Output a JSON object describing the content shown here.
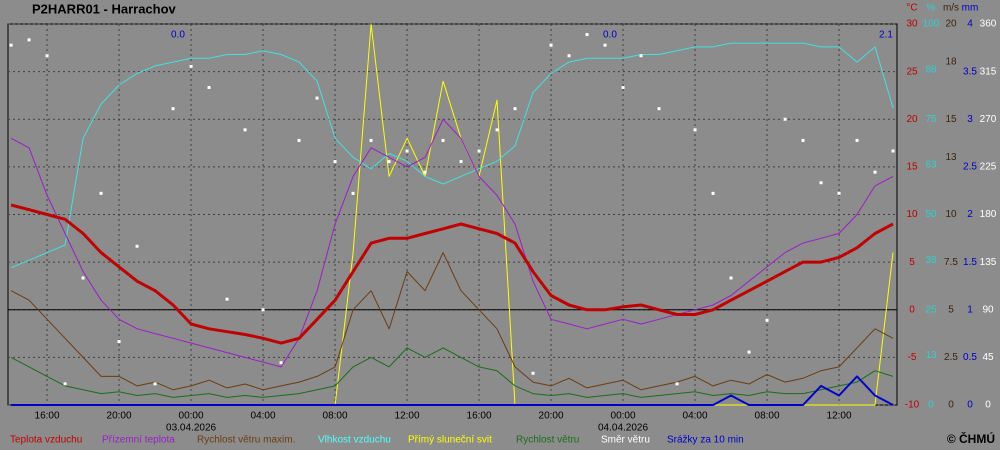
{
  "chart_data": {
    "type": "line",
    "title": "P2HARR01 - Harrachov",
    "copyright": "© ČHMÚ",
    "xlim": [
      -10.17,
      39.22
    ],
    "xticks": [
      {
        "value": -8,
        "label": "16:00"
      },
      {
        "value": -4,
        "label": "20:00"
      },
      {
        "value": 0,
        "label": "00:00"
      },
      {
        "value": 4,
        "label": "04:00"
      },
      {
        "value": 8,
        "label": "08:00"
      },
      {
        "value": 12,
        "label": "12:00"
      },
      {
        "value": 16,
        "label": "16:00"
      },
      {
        "value": 20,
        "label": "20:00"
      },
      {
        "value": 24,
        "label": "00:00"
      },
      {
        "value": 28,
        "label": "04:00"
      },
      {
        "value": 32,
        "label": "08:00"
      },
      {
        "value": 36,
        "label": "12:00"
      }
    ],
    "date_labels": [
      {
        "value": 0,
        "label": "03.04.2026"
      },
      {
        "value": 24,
        "label": "04.04.2026"
      }
    ],
    "daily_precipitation": [
      {
        "value": 0,
        "label": "0.0"
      },
      {
        "value": 0,
        "label": "0.0"
      },
      2.1
    ],
    "grid": true,
    "zero_line": 0,
    "axes": [
      {
        "name": "°C",
        "color": "#c00000",
        "lim": [
          -10,
          30
        ],
        "ticks": [
          -10,
          -5,
          0,
          5,
          10,
          15,
          20,
          25,
          30
        ]
      },
      {
        "name": "%",
        "color": "#30d0d0",
        "lim": [
          0,
          100
        ],
        "ticks": [
          0,
          13,
          25,
          38,
          50,
          63,
          75,
          88,
          100
        ]
      },
      {
        "name": "m/s",
        "color": "#3a2410",
        "lim": [
          0,
          20
        ],
        "ticks": [
          0,
          2.5,
          5,
          7.5,
          10,
          13,
          15,
          18,
          20
        ]
      },
      {
        "name": "mm",
        "color": "#0000cc",
        "lim": [
          0,
          4
        ],
        "ticks": [
          0,
          0.5,
          1,
          1.5,
          2,
          2.5,
          3,
          3.5,
          4
        ]
      },
      {
        "color": "#ffffff",
        "lim": [
          0,
          360
        ],
        "ticks": [
          0,
          45,
          90,
          135,
          180,
          225,
          270,
          315,
          360
        ]
      }
    ],
    "x": [
      -10,
      -9,
      -8,
      -7,
      -6,
      -5,
      -4,
      -3,
      -2,
      -1,
      0,
      1,
      2,
      3,
      4,
      5,
      6,
      7,
      8,
      9,
      10,
      11,
      12,
      13,
      14,
      15,
      16,
      17,
      18,
      19,
      20,
      21,
      22,
      23,
      24,
      25,
      26,
      27,
      28,
      29,
      30,
      31,
      32,
      33,
      34,
      35,
      36,
      37,
      38,
      39
    ],
    "series": [
      {
        "name": "Teplota vzduchu",
        "color": "#c00000",
        "axis": 0,
        "style": "line",
        "width": 3,
        "values": [
          11,
          10.5,
          10,
          9.5,
          8,
          6,
          4.5,
          3,
          2,
          0.5,
          -1.5,
          -2,
          -2.3,
          -2.6,
          -3,
          -3.5,
          -3,
          -1,
          1,
          4,
          7,
          7.5,
          7.5,
          8,
          8.5,
          9,
          8.5,
          8,
          7,
          4,
          1.5,
          0.5,
          0,
          0,
          0.3,
          0.5,
          0,
          -0.5,
          -0.5,
          0,
          1,
          2,
          3,
          4,
          5,
          5,
          5.5,
          6.5,
          8,
          9
        ]
      },
      {
        "name": "Přízemní teplota",
        "color": "#9a1fc8",
        "axis": 0,
        "style": "line",
        "width": 1,
        "values": [
          18,
          17,
          12,
          8,
          4,
          1,
          -1,
          -2,
          -2.5,
          -3,
          -3.5,
          -4,
          -4.5,
          -5,
          -5.5,
          -6,
          -3,
          2,
          9,
          14,
          17,
          16,
          15,
          16,
          20,
          18,
          14,
          12,
          9,
          3,
          -1,
          -1.5,
          -2,
          -1.5,
          -1,
          -1.5,
          -1,
          -0.5,
          0,
          0.5,
          1.5,
          3,
          4.5,
          6,
          7,
          7.5,
          8,
          10,
          13,
          14
        ]
      },
      {
        "name": "Rychlost větru maxim.",
        "color": "#6b3d12",
        "axis": 2,
        "style": "line",
        "width": 1,
        "values": [
          6,
          5.5,
          4.5,
          3.5,
          2.5,
          1.5,
          1.5,
          1,
          1.2,
          0.8,
          1,
          1.3,
          0.9,
          1.1,
          0.8,
          1,
          1.2,
          1.5,
          2,
          5,
          6,
          4,
          7,
          6,
          8,
          6,
          5,
          4,
          2,
          1.2,
          1,
          1.4,
          0.9,
          1.1,
          1.3,
          0.8,
          1,
          1.2,
          1.5,
          1,
          1.3,
          1.1,
          1.6,
          1.2,
          1.4,
          1.8,
          2,
          3,
          4,
          3.5
        ]
      },
      {
        "name": "Vlhkost vzduchu",
        "color": "#44e0e0",
        "axis": 1,
        "style": "line",
        "width": 1,
        "values": [
          36,
          38,
          40,
          42,
          70,
          79,
          84,
          87,
          89,
          90,
          91,
          91,
          92,
          92,
          93,
          92,
          90,
          85,
          70,
          65,
          62,
          66,
          64,
          60,
          58,
          60,
          62,
          64,
          68,
          82,
          87,
          90,
          91,
          91,
          91,
          92,
          92,
          93,
          94,
          94,
          95,
          95,
          95,
          95,
          95,
          94,
          94,
          90,
          94,
          78
        ]
      },
      {
        "name": "Přímý sluneční svit",
        "color": "#ffff00",
        "axis": 1,
        "style": "line",
        "width": 1,
        "values": [
          0,
          0,
          0,
          0,
          0,
          0,
          0,
          0,
          0,
          0,
          0,
          0,
          0,
          0,
          0,
          0,
          0,
          0,
          0,
          40,
          100,
          60,
          70,
          60,
          85,
          70,
          60,
          80,
          0,
          0,
          0,
          0,
          0,
          0,
          0,
          0,
          0,
          0,
          0,
          0,
          0,
          0,
          0,
          0,
          0,
          0,
          0,
          0,
          0,
          40
        ]
      },
      {
        "name": "Rychlost větru",
        "color": "#1a6e1a",
        "axis": 2,
        "style": "line",
        "width": 1,
        "values": [
          2.5,
          2,
          1.5,
          1,
          0.8,
          0.6,
          0.7,
          0.5,
          0.6,
          0.4,
          0.5,
          0.6,
          0.4,
          0.5,
          0.4,
          0.5,
          0.6,
          0.8,
          1,
          2,
          2.5,
          2,
          3,
          2.5,
          3,
          2.5,
          2,
          1.8,
          1,
          0.6,
          0.5,
          0.6,
          0.4,
          0.5,
          0.6,
          0.4,
          0.5,
          0.6,
          0.7,
          0.5,
          0.6,
          0.5,
          0.7,
          0.6,
          0.6,
          0.8,
          1,
          1.2,
          1.8,
          1.5
        ]
      },
      {
        "name": "Směr větru",
        "color": "#ffffff",
        "axis": 4,
        "style": "dots",
        "width": 1,
        "values": [
          340,
          345,
          330,
          20,
          120,
          200,
          60,
          150,
          20,
          280,
          320,
          300,
          100,
          260,
          90,
          40,
          250,
          290,
          230,
          200,
          250,
          230,
          240,
          220,
          250,
          230,
          240,
          260,
          280,
          30,
          340,
          330,
          350,
          340,
          300,
          330,
          280,
          20,
          260,
          200,
          120,
          50,
          80,
          270,
          250,
          210,
          200,
          250,
          220,
          240
        ]
      },
      {
        "name": "Srážky za 10 min",
        "color": "#0000cc",
        "axis": 3,
        "style": "line",
        "width": 2,
        "values": [
          0,
          0,
          0,
          0,
          0,
          0,
          0,
          0,
          0,
          0,
          0,
          0,
          0,
          0,
          0,
          0,
          0,
          0,
          0,
          0,
          0,
          0,
          0,
          0,
          0,
          0,
          0,
          0,
          0,
          0,
          0,
          0,
          0,
          0,
          0,
          0,
          0,
          0,
          0,
          0,
          0.1,
          0,
          0,
          0,
          0,
          0.2,
          0.1,
          0.3,
          0.1,
          0
        ]
      }
    ]
  }
}
